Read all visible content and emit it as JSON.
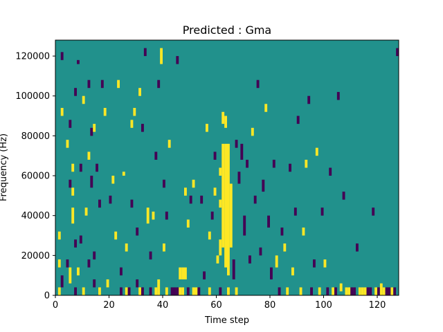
{
  "chart_data": {
    "type": "heatmap",
    "title": "Predicted : Gma",
    "xlabel": "Time step",
    "ylabel": "Frequency (Hz)",
    "xlim": [
      0,
      128
    ],
    "ylim": [
      0,
      128000
    ],
    "x_ticks": [
      0,
      20,
      40,
      60,
      80,
      100,
      120
    ],
    "y_ticks": [
      0,
      20000,
      40000,
      60000,
      80000,
      100000,
      120000
    ],
    "grid": false,
    "legend": "none",
    "colors": {
      "background": "#21918c",
      "low": "#440154",
      "high": "#fde725"
    },
    "levels": {
      "low": -1,
      "background": 0,
      "high": 1
    },
    "cell_width_timesteps": 1,
    "cell_height_hz": 2000,
    "cells": [
      {
        "t": 1,
        "f0": 0,
        "f1": 4000,
        "v": 1
      },
      {
        "t": 2,
        "f0": 4000,
        "f1": 10000,
        "v": -1
      },
      {
        "t": 1,
        "f0": 14000,
        "f1": 18000,
        "v": 1
      },
      {
        "t": 1,
        "f0": 28000,
        "f1": 32000,
        "v": 1
      },
      {
        "t": 2,
        "f0": 118000,
        "f1": 122000,
        "v": -1
      },
      {
        "t": 2,
        "f0": 90000,
        "f1": 94000,
        "v": 1
      },
      {
        "t": 4,
        "f0": 14000,
        "f1": 18000,
        "v": -1
      },
      {
        "t": 5,
        "f0": 6000,
        "f1": 14000,
        "v": 1
      },
      {
        "t": 5,
        "f0": 54000,
        "f1": 58000,
        "v": -1
      },
      {
        "t": 4,
        "f0": 74000,
        "f1": 78000,
        "v": 1
      },
      {
        "t": 5,
        "f0": 84000,
        "f1": 88000,
        "v": -1
      },
      {
        "t": 6,
        "f0": 36000,
        "f1": 44000,
        "v": 1
      },
      {
        "t": 6,
        "f0": 50000,
        "f1": 54000,
        "v": 1
      },
      {
        "t": 6,
        "f0": 62000,
        "f1": 66000,
        "v": 1
      },
      {
        "t": 7,
        "f0": 0,
        "f1": 4000,
        "v": -1
      },
      {
        "t": 7,
        "f0": 24000,
        "f1": 28000,
        "v": -1
      },
      {
        "t": 7,
        "f0": 100000,
        "f1": 104000,
        "v": -1
      },
      {
        "t": 8,
        "f0": 10000,
        "f1": 14000,
        "v": 1
      },
      {
        "t": 8,
        "f0": 116000,
        "f1": 118000,
        "v": -1
      },
      {
        "t": 9,
        "f0": 26000,
        "f1": 30000,
        "v": -1
      },
      {
        "t": 9,
        "f0": 62000,
        "f1": 66000,
        "v": -1
      },
      {
        "t": 10,
        "f0": 0,
        "f1": 4000,
        "v": 1
      },
      {
        "t": 10,
        "f0": 96000,
        "f1": 100000,
        "v": 1
      },
      {
        "t": 11,
        "f0": 40000,
        "f1": 44000,
        "v": 1
      },
      {
        "t": 12,
        "f0": 14000,
        "f1": 18000,
        "v": -1
      },
      {
        "t": 12,
        "f0": 68000,
        "f1": 72000,
        "v": 1
      },
      {
        "t": 12,
        "f0": 104000,
        "f1": 108000,
        "v": -1
      },
      {
        "t": 13,
        "f0": 54000,
        "f1": 60000,
        "v": -1
      },
      {
        "t": 13,
        "f0": 80000,
        "f1": 84000,
        "v": -1
      },
      {
        "t": 14,
        "f0": 4000,
        "f1": 8000,
        "v": -1
      },
      {
        "t": 14,
        "f0": 18000,
        "f1": 22000,
        "v": -1
      },
      {
        "t": 14,
        "f0": 82000,
        "f1": 86000,
        "v": 1
      },
      {
        "t": 15,
        "f0": 62000,
        "f1": 66000,
        "v": -1
      },
      {
        "t": 16,
        "f0": 0,
        "f1": 4000,
        "v": 1
      },
      {
        "t": 16,
        "f0": 44000,
        "f1": 48000,
        "v": -1
      },
      {
        "t": 17,
        "f0": 104000,
        "f1": 108000,
        "v": -1
      },
      {
        "t": 18,
        "f0": 90000,
        "f1": 94000,
        "v": 1
      },
      {
        "t": 19,
        "f0": 4000,
        "f1": 8000,
        "v": 1
      },
      {
        "t": 20,
        "f0": 46000,
        "f1": 50000,
        "v": -1
      },
      {
        "t": 21,
        "f0": 56000,
        "f1": 60000,
        "v": 1
      },
      {
        "t": 22,
        "f0": 28000,
        "f1": 32000,
        "v": 1
      },
      {
        "t": 23,
        "f0": 104000,
        "f1": 108000,
        "v": 1
      },
      {
        "t": 24,
        "f0": 0,
        "f1": 4000,
        "v": -1
      },
      {
        "t": 24,
        "f0": 10000,
        "f1": 14000,
        "v": -1
      },
      {
        "t": 25,
        "f0": 60000,
        "f1": 62000,
        "v": 1
      },
      {
        "t": 26,
        "f0": 0,
        "f1": 4000,
        "v": 1
      },
      {
        "t": 26,
        "f0": 22000,
        "f1": 26000,
        "v": 1
      },
      {
        "t": 27,
        "f0": 0,
        "f1": 4000,
        "v": -1
      },
      {
        "t": 28,
        "f0": 44000,
        "f1": 48000,
        "v": -1
      },
      {
        "t": 28,
        "f0": 84000,
        "f1": 88000,
        "v": 1
      },
      {
        "t": 29,
        "f0": 90000,
        "f1": 94000,
        "v": 1
      },
      {
        "t": 30,
        "f0": 4000,
        "f1": 8000,
        "v": -1
      },
      {
        "t": 30,
        "f0": 30000,
        "f1": 34000,
        "v": -1
      },
      {
        "t": 31,
        "f0": 0,
        "f1": 4000,
        "v": 1
      },
      {
        "t": 31,
        "f0": 100000,
        "f1": 104000,
        "v": 1
      },
      {
        "t": 32,
        "f0": 0,
        "f1": 4000,
        "v": -1
      },
      {
        "t": 32,
        "f0": 82000,
        "f1": 86000,
        "v": -1
      },
      {
        "t": 33,
        "f0": 120000,
        "f1": 124000,
        "v": -1
      },
      {
        "t": 34,
        "f0": 36000,
        "f1": 44000,
        "v": 1
      },
      {
        "t": 35,
        "f0": 0,
        "f1": 4000,
        "v": -1
      },
      {
        "t": 35,
        "f0": 18000,
        "f1": 22000,
        "v": -1
      },
      {
        "t": 36,
        "f0": 38000,
        "f1": 42000,
        "v": 1
      },
      {
        "t": 37,
        "f0": 0,
        "f1": 4000,
        "v": 1
      },
      {
        "t": 37,
        "f0": 68000,
        "f1": 72000,
        "v": -1
      },
      {
        "t": 38,
        "f0": 0,
        "f1": 8000,
        "v": 1
      },
      {
        "t": 38,
        "f0": 104000,
        "f1": 108000,
        "v": -1
      },
      {
        "t": 39,
        "f0": 116000,
        "f1": 124000,
        "v": 1
      },
      {
        "t": 40,
        "f0": 54000,
        "f1": 58000,
        "v": -1
      },
      {
        "t": 40,
        "f0": 22000,
        "f1": 26000,
        "v": 1
      },
      {
        "t": 41,
        "f0": 0,
        "f1": 4000,
        "v": 1
      },
      {
        "t": 41,
        "f0": 38000,
        "f1": 42000,
        "v": -1
      },
      {
        "t": 42,
        "f0": 74000,
        "f1": 78000,
        "v": 1
      },
      {
        "t": 43,
        "f0": 0,
        "f1": 4000,
        "v": -1
      },
      {
        "t": 44,
        "f0": 0,
        "f1": 4000,
        "v": -1
      },
      {
        "t": 45,
        "f0": 0,
        "f1": 4000,
        "v": -1
      },
      {
        "t": 45,
        "f0": 116000,
        "f1": 120000,
        "v": -1
      },
      {
        "t": 46,
        "f0": 8000,
        "f1": 14000,
        "v": 1
      },
      {
        "t": 46,
        "f0": 0,
        "f1": 4000,
        "v": 1
      },
      {
        "t": 47,
        "f0": 0,
        "f1": 4000,
        "v": 1
      },
      {
        "t": 47,
        "f0": 8000,
        "f1": 14000,
        "v": 1
      },
      {
        "t": 48,
        "f0": 8000,
        "f1": 14000,
        "v": 1
      },
      {
        "t": 48,
        "f0": 50000,
        "f1": 54000,
        "v": 1
      },
      {
        "t": 49,
        "f0": 0,
        "f1": 4000,
        "v": -1
      },
      {
        "t": 49,
        "f0": 34000,
        "f1": 38000,
        "v": 1
      },
      {
        "t": 50,
        "f0": 46000,
        "f1": 50000,
        "v": -1
      },
      {
        "t": 51,
        "f0": 54000,
        "f1": 58000,
        "v": 1
      },
      {
        "t": 51,
        "f0": 0,
        "f1": 4000,
        "v": 1
      },
      {
        "t": 52,
        "f0": 0,
        "f1": 4000,
        "v": 1
      },
      {
        "t": 53,
        "f0": 0,
        "f1": 4000,
        "v": -1
      },
      {
        "t": 54,
        "f0": 46000,
        "f1": 50000,
        "v": -1
      },
      {
        "t": 55,
        "f0": 8000,
        "f1": 12000,
        "v": -1
      },
      {
        "t": 56,
        "f0": 82000,
        "f1": 86000,
        "v": 1
      },
      {
        "t": 57,
        "f0": 0,
        "f1": 4000,
        "v": 1
      },
      {
        "t": 57,
        "f0": 28000,
        "f1": 32000,
        "v": 1
      },
      {
        "t": 58,
        "f0": 38000,
        "f1": 42000,
        "v": -1
      },
      {
        "t": 59,
        "f0": 50000,
        "f1": 54000,
        "v": 1
      },
      {
        "t": 59,
        "f0": 68000,
        "f1": 72000,
        "v": -1
      },
      {
        "t": 60,
        "f0": 16000,
        "f1": 20000,
        "v": 1
      },
      {
        "t": 61,
        "f0": 0,
        "f1": 4000,
        "v": -1
      },
      {
        "t": 61,
        "f0": 20000,
        "f1": 28000,
        "v": 1
      },
      {
        "t": 61,
        "f0": 44000,
        "f1": 48000,
        "v": 1
      },
      {
        "t": 61,
        "f0": 60000,
        "f1": 64000,
        "v": 1
      },
      {
        "t": 62,
        "f0": 24000,
        "f1": 76000,
        "v": 1
      },
      {
        "t": 62,
        "f0": 86000,
        "f1": 92000,
        "v": 1
      },
      {
        "t": 63,
        "f0": 14000,
        "f1": 76000,
        "v": 1
      },
      {
        "t": 63,
        "f0": 84000,
        "f1": 90000,
        "v": 1
      },
      {
        "t": 64,
        "f0": 0,
        "f1": 4000,
        "v": 1
      },
      {
        "t": 64,
        "f0": 10000,
        "f1": 76000,
        "v": 1
      },
      {
        "t": 65,
        "f0": 24000,
        "f1": 56000,
        "v": 1
      },
      {
        "t": 66,
        "f0": 8000,
        "f1": 18000,
        "v": -1
      },
      {
        "t": 67,
        "f0": 0,
        "f1": 4000,
        "v": 1
      },
      {
        "t": 67,
        "f0": 74000,
        "f1": 78000,
        "v": -1
      },
      {
        "t": 68,
        "f0": 56000,
        "f1": 62000,
        "v": -1
      },
      {
        "t": 69,
        "f0": 68000,
        "f1": 76000,
        "v": -1
      },
      {
        "t": 70,
        "f0": 30000,
        "f1": 40000,
        "v": -1
      },
      {
        "t": 71,
        "f0": 64000,
        "f1": 68000,
        "v": -1
      },
      {
        "t": 72,
        "f0": 16000,
        "f1": 20000,
        "v": -1
      },
      {
        "t": 73,
        "f0": 80000,
        "f1": 84000,
        "v": 1
      },
      {
        "t": 74,
        "f0": 46000,
        "f1": 50000,
        "v": -1
      },
      {
        "t": 75,
        "f0": 104000,
        "f1": 108000,
        "v": -1
      },
      {
        "t": 76,
        "f0": 20000,
        "f1": 24000,
        "v": -1
      },
      {
        "t": 77,
        "f0": 52000,
        "f1": 58000,
        "v": -1
      },
      {
        "t": 78,
        "f0": 92000,
        "f1": 96000,
        "v": 1
      },
      {
        "t": 79,
        "f0": 34000,
        "f1": 40000,
        "v": -1
      },
      {
        "t": 80,
        "f0": 8000,
        "f1": 14000,
        "v": -1
      },
      {
        "t": 81,
        "f0": 64000,
        "f1": 68000,
        "v": -1
      },
      {
        "t": 82,
        "f0": 14000,
        "f1": 20000,
        "v": 1
      },
      {
        "t": 83,
        "f0": 0,
        "f1": 4000,
        "v": -1
      },
      {
        "t": 84,
        "f0": 30000,
        "f1": 34000,
        "v": -1
      },
      {
        "t": 85,
        "f0": 22000,
        "f1": 26000,
        "v": 1
      },
      {
        "t": 86,
        "f0": 0,
        "f1": 4000,
        "v": 1
      },
      {
        "t": 87,
        "f0": 62000,
        "f1": 66000,
        "v": -1
      },
      {
        "t": 88,
        "f0": 10000,
        "f1": 14000,
        "v": 1
      },
      {
        "t": 89,
        "f0": 40000,
        "f1": 44000,
        "v": -1
      },
      {
        "t": 90,
        "f0": 86000,
        "f1": 90000,
        "v": -1
      },
      {
        "t": 91,
        "f0": 0,
        "f1": 4000,
        "v": 1
      },
      {
        "t": 92,
        "f0": 30000,
        "f1": 34000,
        "v": 1
      },
      {
        "t": 93,
        "f0": 64000,
        "f1": 68000,
        "v": 1
      },
      {
        "t": 94,
        "f0": 96000,
        "f1": 100000,
        "v": -1
      },
      {
        "t": 95,
        "f0": 0,
        "f1": 4000,
        "v": -1
      },
      {
        "t": 96,
        "f0": 14000,
        "f1": 18000,
        "v": -1
      },
      {
        "t": 97,
        "f0": 70000,
        "f1": 74000,
        "v": 1
      },
      {
        "t": 98,
        "f0": 0,
        "f1": 4000,
        "v": 1
      },
      {
        "t": 99,
        "f0": 40000,
        "f1": 44000,
        "v": -1
      },
      {
        "t": 100,
        "f0": 14000,
        "f1": 18000,
        "v": 1
      },
      {
        "t": 101,
        "f0": 0,
        "f1": 4000,
        "v": -1
      },
      {
        "t": 102,
        "f0": 60000,
        "f1": 64000,
        "v": -1
      },
      {
        "t": 103,
        "f0": 0,
        "f1": 4000,
        "v": 1
      },
      {
        "t": 104,
        "f0": 0,
        "f1": 4000,
        "v": -1
      },
      {
        "t": 105,
        "f0": 98000,
        "f1": 102000,
        "v": -1
      },
      {
        "t": 106,
        "f0": 2000,
        "f1": 6000,
        "v": 1
      },
      {
        "t": 107,
        "f0": 48000,
        "f1": 52000,
        "v": -1
      },
      {
        "t": 108,
        "f0": 0,
        "f1": 4000,
        "v": 1
      },
      {
        "t": 109,
        "f0": 0,
        "f1": 4000,
        "v": 1
      },
      {
        "t": 110,
        "f0": 0,
        "f1": 4000,
        "v": -1
      },
      {
        "t": 111,
        "f0": 0,
        "f1": 4000,
        "v": -1
      },
      {
        "t": 112,
        "f0": 22000,
        "f1": 26000,
        "v": -1
      },
      {
        "t": 113,
        "f0": 0,
        "f1": 4000,
        "v": 1
      },
      {
        "t": 114,
        "f0": 0,
        "f1": 4000,
        "v": 1
      },
      {
        "t": 115,
        "f0": 0,
        "f1": 4000,
        "v": 1
      },
      {
        "t": 116,
        "f0": 0,
        "f1": 4000,
        "v": -1
      },
      {
        "t": 117,
        "f0": 0,
        "f1": 4000,
        "v": -1
      },
      {
        "t": 118,
        "f0": 40000,
        "f1": 44000,
        "v": -1
      },
      {
        "t": 119,
        "f0": 0,
        "f1": 4000,
        "v": 1
      },
      {
        "t": 120,
        "f0": 0,
        "f1": 4000,
        "v": -1
      },
      {
        "t": 121,
        "f0": 0,
        "f1": 6000,
        "v": 1
      },
      {
        "t": 122,
        "f0": 0,
        "f1": 4000,
        "v": 1
      },
      {
        "t": 123,
        "f0": 0,
        "f1": 4000,
        "v": -1
      },
      {
        "t": 124,
        "f0": 0,
        "f1": 4000,
        "v": -1
      },
      {
        "t": 125,
        "f0": 0,
        "f1": 4000,
        "v": 1
      },
      {
        "t": 126,
        "f0": 0,
        "f1": 4000,
        "v": -1
      },
      {
        "t": 127,
        "f0": 120000,
        "f1": 124000,
        "v": -1
      }
    ]
  }
}
